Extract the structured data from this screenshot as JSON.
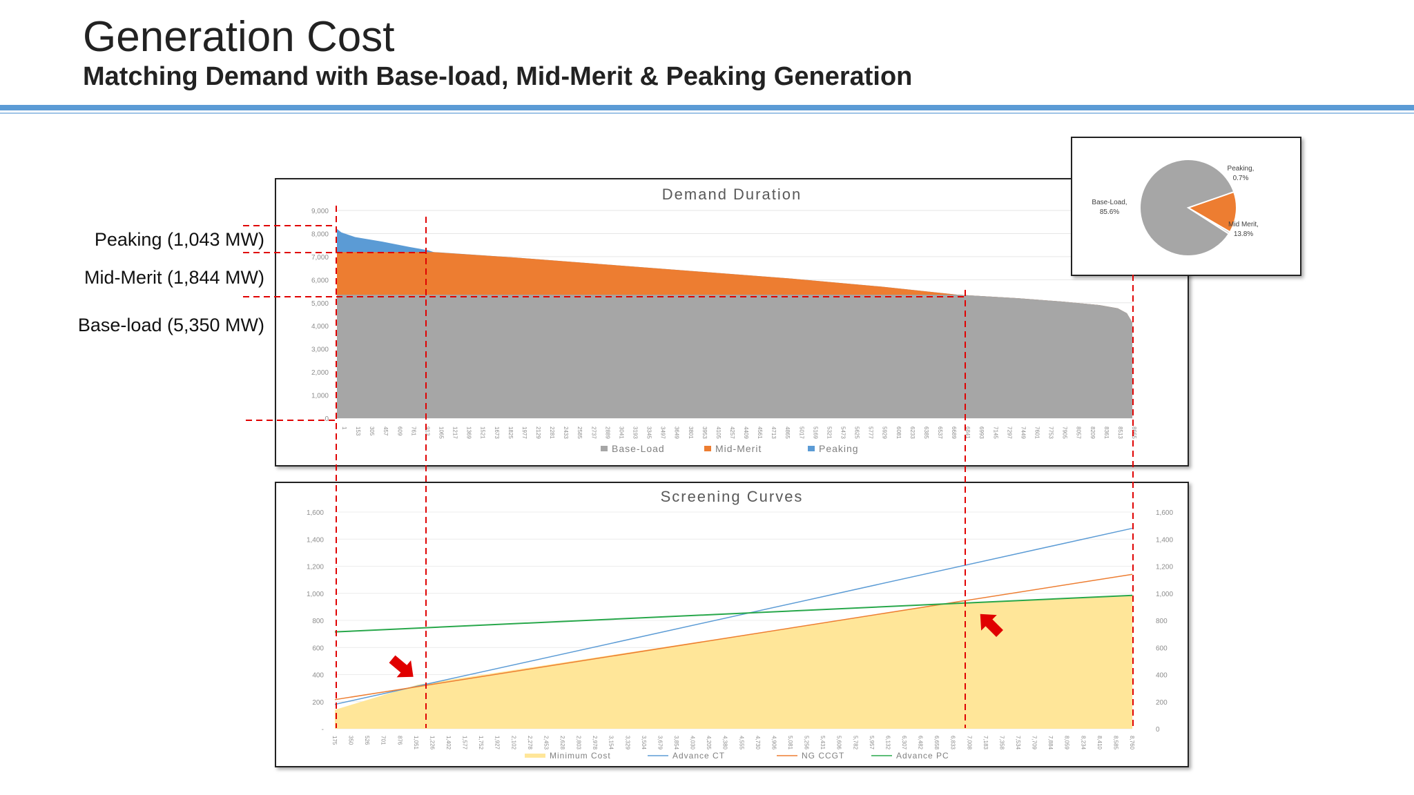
{
  "header": {
    "title": "Generation Cost",
    "subtitle": "Matching Demand with Base-load, Mid-Merit & Peaking Generation"
  },
  "side_labels": {
    "peaking": "Peaking (1,043 MW)",
    "mid_merit": "Mid-Merit (1,844 MW)",
    "base_load": "Base-load (5,350 MW)"
  },
  "colors": {
    "base_load": "#a6a6a6",
    "mid_merit": "#ed7d31",
    "peaking": "#5b9bd5",
    "minimum_cost": "#ffe699",
    "advance_ct": "#5b9bd5",
    "ng_ccgt": "#ed7d31",
    "advance_pc": "#27a74a",
    "guide": "#e00000",
    "accent_rule": "#5b9bd5"
  },
  "chart_data": [
    {
      "type": "area",
      "title": "Demand Duration",
      "ylim": [
        0,
        9000
      ],
      "y_ticks": [
        "0",
        "1,000",
        "2,000",
        "3,000",
        "4,000",
        "5,000",
        "6,000",
        "7,000",
        "8,000",
        "9,000"
      ],
      "x_ticks": [
        "1",
        "153",
        "305",
        "457",
        "609",
        "761",
        "913",
        "1065",
        "1217",
        "1369",
        "1521",
        "1673",
        "1825",
        "1977",
        "2129",
        "2281",
        "2433",
        "2585",
        "2737",
        "2889",
        "3041",
        "3193",
        "3345",
        "3497",
        "3649",
        "3801",
        "3953",
        "4105",
        "4257",
        "4409",
        "4561",
        "4713",
        "4865",
        "5017",
        "5169",
        "5321",
        "5473",
        "5625",
        "5777",
        "5929",
        "6081",
        "6233",
        "6385",
        "6537",
        "6689",
        "6841",
        "6993",
        "7145",
        "7297",
        "7449",
        "7601",
        "7753",
        "7905",
        "8057",
        "8209",
        "8361",
        "8513",
        "8665"
      ],
      "xlim": [
        1,
        8760
      ],
      "hours": [
        1,
        50,
        200,
        500,
        800,
        1000,
        1065,
        2000,
        3000,
        4000,
        5000,
        6000,
        6841,
        7500,
        8000,
        8400,
        8600,
        8700,
        8760
      ],
      "demand_mw": [
        8200,
        8050,
        7850,
        7650,
        7420,
        7280,
        7200,
        6950,
        6650,
        6350,
        6050,
        5700,
        5350,
        5200,
        5050,
        4900,
        4760,
        4550,
        4150
      ],
      "thresholds_mw": {
        "base_load": 5350,
        "mid_merit_top": 7194
      },
      "series": [
        {
          "name": "Base-Load"
        },
        {
          "name": "Mid-Merit"
        },
        {
          "name": "Peaking"
        }
      ]
    },
    {
      "type": "pie",
      "slices": [
        {
          "label": "Base-Load,",
          "value_label": "85.6%",
          "value": 85.6
        },
        {
          "label": "Mid Merit,",
          "value_label": "13.8%",
          "value": 13.8
        },
        {
          "label": "Peaking,",
          "value_label": "0.7%",
          "value": 0.7
        }
      ]
    },
    {
      "type": "line",
      "title": "Screening Curves",
      "ylim": [
        0,
        1600
      ],
      "y_ticks_left": [
        "-",
        "200",
        "400",
        "600",
        "800",
        "1,000",
        "1,200",
        "1,400",
        "1,600"
      ],
      "y_ticks_right": [
        "0",
        "200",
        "400",
        "600",
        "800",
        "1,000",
        "1,200",
        "1,400",
        "1,600"
      ],
      "xlim": [
        175,
        8760
      ],
      "x_ticks": [
        "175",
        "350",
        "526",
        "701",
        "876",
        "1,051",
        "1,226",
        "1,402",
        "1,577",
        "1,752",
        "1,927",
        "2,102",
        "2,278",
        "2,453",
        "2,628",
        "2,803",
        "2,978",
        "3,154",
        "3,329",
        "3,504",
        "3,679",
        "3,854",
        "4,030",
        "4,205",
        "4,380",
        "4,555",
        "4,730",
        "4,906",
        "5,081",
        "5,256",
        "5,431",
        "5,606",
        "5,782",
        "5,957",
        "6,132",
        "6,307",
        "6,482",
        "6,658",
        "6,833",
        "7,008",
        "7,183",
        "7,358",
        "7,534",
        "7,709",
        "7,884",
        "8,059",
        "8,234",
        "8,410",
        "8,585",
        "8,760"
      ],
      "series": [
        {
          "name": "Minimum Cost",
          "x": [
            175,
            1065,
            6841,
            8760
          ],
          "values": [
            140,
            325,
            930,
            985
          ]
        },
        {
          "name": "Advance CT",
          "x": [
            175,
            8760
          ],
          "values": [
            180,
            1480
          ]
        },
        {
          "name": "NG CCGT",
          "x": [
            175,
            8760
          ],
          "values": [
            215,
            1140
          ]
        },
        {
          "name": "Advance PC",
          "x": [
            175,
            8760
          ],
          "values": [
            715,
            985
          ]
        }
      ]
    }
  ]
}
